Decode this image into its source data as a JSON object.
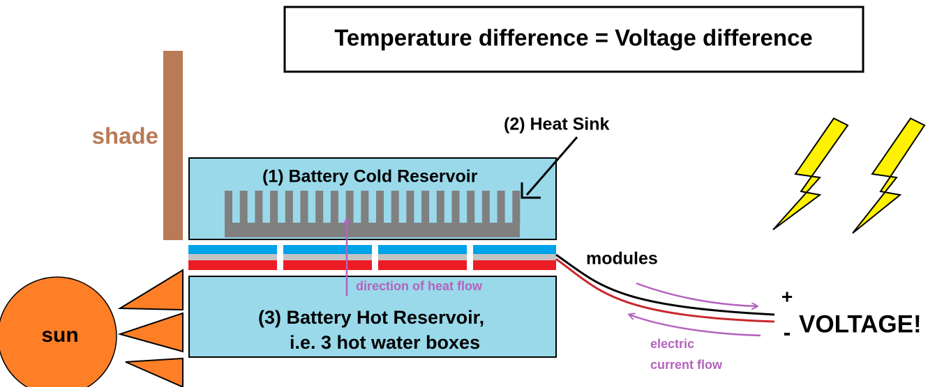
{
  "title": "Temperature difference = Voltage difference",
  "shade": "shade",
  "heat_sink": "(2) Heat Sink",
  "cold_reservoir": "(1) Battery Cold Reservoir",
  "modules": "modules",
  "heat_flow": "direction of heat flow",
  "hot_reservoir": [
    "(3) Battery Hot Reservoir,",
    "i.e. 3 hot water boxes"
  ],
  "sun": "sun",
  "plus": "+",
  "minus": "-",
  "voltage": "VOLTAGE!",
  "current_flow": [
    "electric",
    "current flow"
  ]
}
